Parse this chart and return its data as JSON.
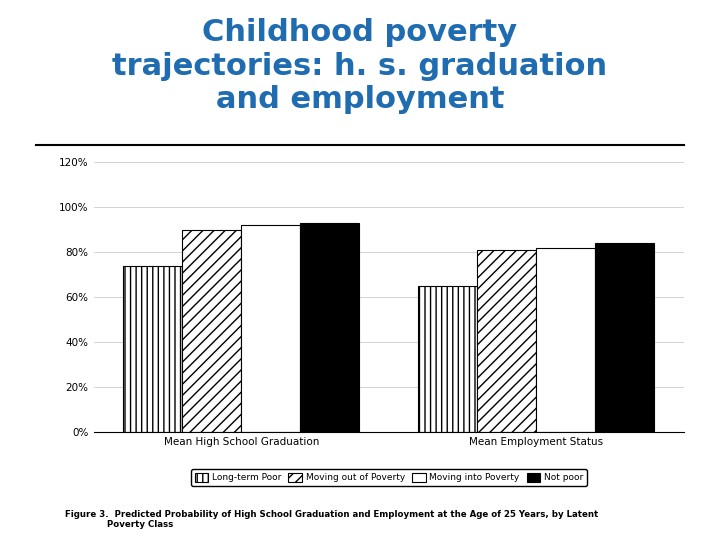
{
  "title": "Childhood poverty\ntrajectories: h. s. graduation\nand employment",
  "title_color": "#1F6CB0",
  "title_fontsize": 22,
  "title_fontstyle": "bold",
  "groups": [
    "Mean High School Graduation",
    "Mean Employment Status"
  ],
  "categories": [
    "Long-term Poor",
    "Moving out of Poverty",
    "Moving into Poverty",
    "Not poor"
  ],
  "values": [
    [
      0.74,
      0.9,
      0.92,
      0.93
    ],
    [
      0.65,
      0.81,
      0.82,
      0.84
    ]
  ],
  "ylim": [
    0,
    1.2
  ],
  "yticks": [
    0.0,
    0.2,
    0.4,
    0.6,
    0.8,
    1.0,
    1.2
  ],
  "ytick_labels": [
    "0%",
    "20%",
    "40%",
    "60%",
    "80%",
    "100%",
    "120%"
  ],
  "bar_width": 0.18,
  "background_color": "#ffffff",
  "figure_caption": "Figure 3.  Predicted Probability of High School Graduation and Employment at the Age of 25 Years, by Latent\n              Poverty Class"
}
